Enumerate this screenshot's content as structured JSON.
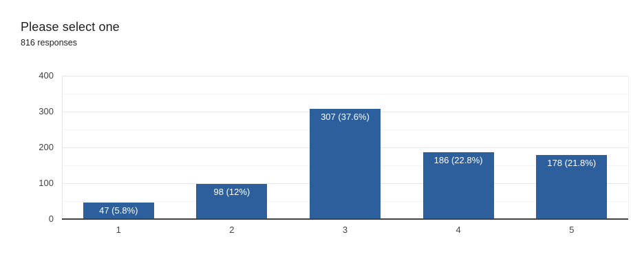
{
  "header": {
    "title": "Please select one",
    "subtitle": "816 responses"
  },
  "chart_data": {
    "type": "bar",
    "title": "Please select one",
    "subtitle": "816 responses",
    "categories": [
      "1",
      "2",
      "3",
      "4",
      "5"
    ],
    "values": [
      47,
      98,
      307,
      186,
      178
    ],
    "bar_labels": [
      "47 (5.8%)",
      "98 (12%)",
      "307 (37.6%)",
      "186 (22.8%)",
      "178 (21.8%)"
    ],
    "xlabel": "",
    "ylabel": "",
    "ylim": [
      0,
      400
    ],
    "yticks": [
      0,
      100,
      200,
      300,
      400
    ],
    "minor_ticks": [
      50,
      150,
      250,
      350
    ],
    "grid": true,
    "legend": "none",
    "colors": {
      "bar": "#2d5f9d",
      "bar_label_text": "#ffffff",
      "gridline_major": "#e6e6e6",
      "gridline_minor": "#f3f3f3",
      "axis_line": "#424242",
      "tick_text": "#444444",
      "title_text": "#212121",
      "subtitle_text": "#202124",
      "background": "#ffffff"
    }
  }
}
